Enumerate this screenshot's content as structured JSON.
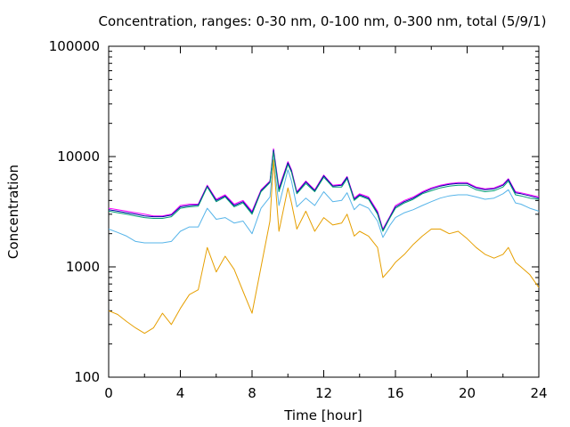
{
  "chart_data": {
    "type": "line",
    "title": "Concentration, ranges: 0-30 nm, 0-100 nm, 0-300 nm, total (5/9/1)",
    "xlabel": "Time [hour]",
    "ylabel": "Concentration",
    "xlim": [
      0,
      24
    ],
    "ylim": [
      100,
      100000
    ],
    "yscale": "log",
    "grid": false,
    "legend": "none",
    "x_ticks": [
      "0",
      "4",
      "8",
      "12",
      "16",
      "20",
      "24"
    ],
    "y_ticks": [
      "100",
      "1000",
      "10000",
      "100000"
    ],
    "x": [
      0,
      0.5,
      1,
      1.5,
      2,
      2.5,
      3,
      3.5,
      4,
      4.5,
      5,
      5.5,
      6,
      6.5,
      7,
      7.5,
      8,
      8.5,
      9,
      9.2,
      9.5,
      10,
      10.2,
      10.5,
      11,
      11.5,
      12,
      12.5,
      13,
      13.3,
      13.7,
      14,
      14.5,
      15,
      15.3,
      15.7,
      16,
      16.5,
      17,
      17.5,
      18,
      18.5,
      19,
      19.5,
      20,
      20.5,
      21,
      21.5,
      22,
      22.3,
      22.7,
      23,
      23.5,
      24
    ],
    "series": [
      {
        "color": "#ff00ff",
        "values": [
          3400,
          3300,
          3200,
          3100,
          3000,
          2900,
          2900,
          3000,
          3600,
          3700,
          3700,
          5500,
          4100,
          4500,
          3700,
          4000,
          3200,
          5000,
          6000,
          11800,
          5200,
          9000,
          7600,
          4800,
          6000,
          5000,
          6800,
          5500,
          5600,
          6600,
          4200,
          4600,
          4300,
          3200,
          2200,
          2900,
          3600,
          4000,
          4300,
          4800,
          5200,
          5500,
          5700,
          5800,
          5800,
          5300,
          5100,
          5200,
          5600,
          6300,
          4800,
          4700,
          4500,
          4300
        ]
      },
      {
        "color": "#0000a8",
        "values": [
          3300,
          3200,
          3100,
          3000,
          2900,
          2850,
          2850,
          2950,
          3500,
          3600,
          3650,
          5400,
          4000,
          4400,
          3600,
          3900,
          3100,
          4900,
          5900,
          11500,
          5000,
          8800,
          7400,
          4700,
          5900,
          4900,
          6700,
          5400,
          5500,
          6500,
          4100,
          4500,
          4200,
          3100,
          2150,
          2850,
          3500,
          3900,
          4200,
          4700,
          5100,
          5400,
          5600,
          5700,
          5700,
          5200,
          5000,
          5100,
          5500,
          6200,
          4700,
          4600,
          4400,
          4200
        ]
      },
      {
        "color": "#009e73",
        "values": [
          3200,
          3100,
          3000,
          2900,
          2800,
          2750,
          2750,
          2850,
          3400,
          3500,
          3550,
          5300,
          3900,
          4300,
          3500,
          3800,
          3000,
          4800,
          5800,
          11000,
          4800,
          8500,
          7200,
          4600,
          5700,
          4800,
          6500,
          5300,
          5300,
          6300,
          4000,
          4400,
          4100,
          3000,
          2100,
          2800,
          3400,
          3800,
          4100,
          4600,
          4900,
          5200,
          5400,
          5500,
          5500,
          5000,
          4800,
          4900,
          5300,
          6000,
          4500,
          4400,
          4200,
          4100
        ]
      },
      {
        "color": "#56b4e9",
        "values": [
          2200,
          2050,
          1900,
          1700,
          1650,
          1650,
          1650,
          1700,
          2100,
          2300,
          2300,
          3400,
          2700,
          2800,
          2500,
          2600,
          2000,
          3400,
          4300,
          9500,
          3600,
          7600,
          6000,
          3500,
          4200,
          3600,
          4800,
          3900,
          4000,
          4700,
          3300,
          3700,
          3400,
          2600,
          1850,
          2400,
          2800,
          3100,
          3300,
          3600,
          3900,
          4200,
          4400,
          4500,
          4500,
          4300,
          4100,
          4200,
          4600,
          5000,
          3800,
          3700,
          3400,
          3200
        ]
      },
      {
        "color": "#e69f00",
        "values": [
          400,
          370,
          320,
          280,
          250,
          280,
          380,
          300,
          420,
          560,
          620,
          1500,
          900,
          1250,
          950,
          600,
          380,
          1000,
          2600,
          9300,
          2100,
          5200,
          3800,
          2200,
          3200,
          2100,
          2800,
          2400,
          2500,
          3000,
          1900,
          2100,
          1900,
          1500,
          800,
          950,
          1100,
          1300,
          1600,
          1900,
          2200,
          2200,
          2000,
          2100,
          1800,
          1500,
          1300,
          1200,
          1300,
          1500,
          1100,
          1000,
          850,
          650
        ]
      }
    ]
  }
}
